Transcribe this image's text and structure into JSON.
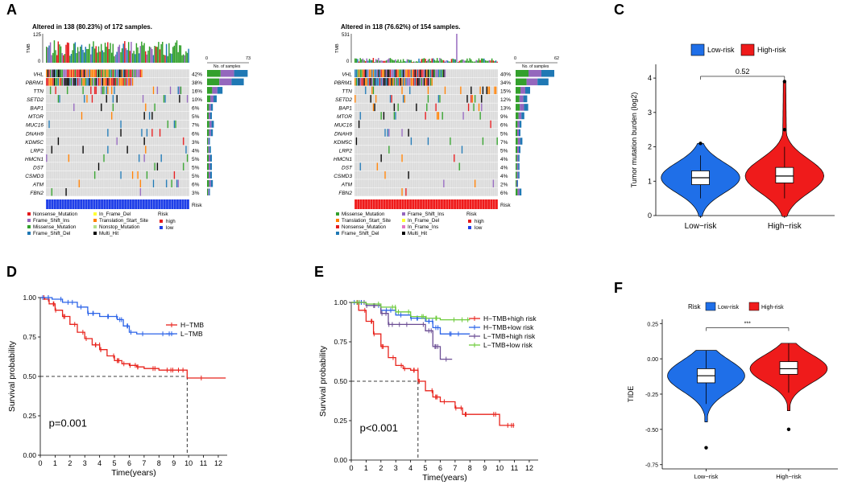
{
  "figure": {
    "panel_letters": [
      "A",
      "B",
      "C",
      "D",
      "E",
      "F"
    ]
  },
  "chart_data": [
    {
      "type": "oncoplot",
      "id": "A",
      "title": "Altered in 138 (80.23%) of 172 samples.",
      "tmb_axis": {
        "label": "TMB",
        "max": 125,
        "ticks": [
          0,
          125
        ]
      },
      "samples_axis": {
        "label": "No. of samples",
        "ticks": [
          0,
          73
        ]
      },
      "genes": [
        "VHL",
        "PBRM1",
        "TTN",
        "SETD2",
        "BAP1",
        "MTOR",
        "MUC16",
        "DNAH9",
        "KDM5C",
        "LRP2",
        "HMCN1",
        "DST",
        "CSMD3",
        "ATM",
        "FBN2"
      ],
      "percentages": [
        "42%",
        "38%",
        "16%",
        "10%",
        "6%",
        "5%",
        "7%",
        "6%",
        "3%",
        "4%",
        "5%",
        "5%",
        "5%",
        "6%",
        "3%"
      ],
      "risk_label": "Risk",
      "risk_group": "low",
      "legend": {
        "mutation_types": [
          "Nonsense_Mutation",
          "Frame_Shift_Ins",
          "Missense_Mutation",
          "Frame_Shift_Del",
          "In_Frame_Del",
          "Translation_Start_Site",
          "Nonstop_Mutation",
          "Multi_Hit"
        ],
        "risk_title": "Risk",
        "risk_levels": [
          "high",
          "low"
        ]
      }
    },
    {
      "type": "oncoplot",
      "id": "B",
      "title": "Altered in 118 (76.62%) of 154 samples.",
      "tmb_axis": {
        "label": "TMB",
        "max": 531,
        "ticks": [
          0,
          531
        ]
      },
      "samples_axis": {
        "label": "No. of samples",
        "ticks": [
          0,
          62
        ]
      },
      "genes": [
        "VHL",
        "PBRM1",
        "TTN",
        "SETD2",
        "BAP1",
        "MTOR",
        "MUC16",
        "DNAH9",
        "KDM5C",
        "LRP2",
        "HMCN1",
        "DST",
        "CSMD3",
        "ATM",
        "FBN2"
      ],
      "percentages": [
        "40%",
        "34%",
        "15%",
        "12%",
        "13%",
        "9%",
        "6%",
        "5%",
        "7%",
        "5%",
        "4%",
        "4%",
        "4%",
        "2%",
        "6%"
      ],
      "risk_label": "Risk",
      "risk_group": "high",
      "legend": {
        "mutation_types": [
          "Missense_Mutation",
          "Translation_Start_Site",
          "Nonsense_Mutation",
          "Frame_Shift_Del",
          "Frame_Shift_Ins",
          "In_Frame_Del",
          "In_Frame_Ins",
          "Multi_Hit"
        ],
        "risk_title": "Risk",
        "risk_levels": [
          "high",
          "low"
        ]
      }
    },
    {
      "type": "violin",
      "id": "C",
      "legend": [
        "Low-risk",
        "High-risk"
      ],
      "ylabel": "Tumor mutation burden (log2)",
      "ylim": [
        0,
        4.4
      ],
      "yticks": [
        0,
        1,
        2,
        3,
        4
      ],
      "categories": [
        "Low−risk",
        "High−risk"
      ],
      "medians": [
        1.1,
        1.15
      ],
      "q1": [
        0.9,
        0.95
      ],
      "q3": [
        1.3,
        1.4
      ],
      "whisker_low": [
        0.5,
        0.5
      ],
      "whisker_high": [
        1.75,
        2.0
      ],
      "outliers": [
        [
          2.1
        ],
        [
          2.5,
          3.9
        ]
      ],
      "pvalue": "0.52",
      "colors": [
        "#1f6fe8",
        "#ef1b1b"
      ]
    },
    {
      "type": "kaplan_meier",
      "id": "D",
      "xlabel": "Time(years)",
      "ylabel": "Survival probability",
      "xticks": [
        0,
        1,
        2,
        3,
        4,
        5,
        6,
        7,
        8,
        9,
        10,
        11,
        12
      ],
      "yticks": [
        "0.00",
        "0.25",
        "0.50",
        "0.75",
        "1.00"
      ],
      "xlim": [
        0,
        12.6
      ],
      "ylim": [
        0,
        1.0
      ],
      "pvalue": "p=0.001",
      "median_time": 9.9,
      "series": [
        {
          "name": "H−TMB",
          "color": "#e8231c",
          "points": [
            [
              0,
              1.0
            ],
            [
              0.3,
              0.99
            ],
            [
              0.6,
              0.96
            ],
            [
              1.0,
              0.92
            ],
            [
              1.5,
              0.88
            ],
            [
              2.0,
              0.83
            ],
            [
              2.5,
              0.78
            ],
            [
              3.0,
              0.74
            ],
            [
              3.5,
              0.7
            ],
            [
              4.0,
              0.67
            ],
            [
              4.5,
              0.63
            ],
            [
              5.0,
              0.6
            ],
            [
              5.5,
              0.58
            ],
            [
              6.0,
              0.57
            ],
            [
              6.5,
              0.56
            ],
            [
              7.0,
              0.55
            ],
            [
              8.0,
              0.54
            ],
            [
              9.0,
              0.54
            ],
            [
              9.9,
              0.49
            ],
            [
              12.5,
              0.49
            ]
          ]
        },
        {
          "name": "L−TMB",
          "color": "#2b63e8",
          "points": [
            [
              0,
              1.0
            ],
            [
              0.8,
              0.99
            ],
            [
              1.5,
              0.97
            ],
            [
              2.5,
              0.94
            ],
            [
              3.2,
              0.9
            ],
            [
              4.0,
              0.88
            ],
            [
              5.2,
              0.86
            ],
            [
              5.6,
              0.82
            ],
            [
              6.0,
              0.78
            ],
            [
              6.5,
              0.77
            ],
            [
              9.0,
              0.77
            ]
          ]
        }
      ]
    },
    {
      "type": "kaplan_meier",
      "id": "E",
      "xlabel": "Time(years)",
      "ylabel": "Survival probability",
      "xticks": [
        0,
        1,
        2,
        3,
        4,
        5,
        6,
        7,
        8,
        9,
        10,
        11,
        12
      ],
      "yticks": [
        "0.00",
        "0.25",
        "0.50",
        "0.75",
        "1.00"
      ],
      "xlim": [
        0,
        12.6
      ],
      "ylim": [
        0,
        1.0
      ],
      "pvalue": "p<0.001",
      "median_time": 4.5,
      "series": [
        {
          "name": "H−TMB+high risk",
          "color": "#e8231c",
          "points": [
            [
              0,
              1.0
            ],
            [
              0.5,
              0.95
            ],
            [
              1.0,
              0.88
            ],
            [
              1.5,
              0.8
            ],
            [
              2.0,
              0.72
            ],
            [
              2.5,
              0.65
            ],
            [
              3.0,
              0.6
            ],
            [
              3.5,
              0.58
            ],
            [
              4.0,
              0.57
            ],
            [
              4.5,
              0.5
            ],
            [
              5.0,
              0.44
            ],
            [
              5.5,
              0.4
            ],
            [
              6.0,
              0.37
            ],
            [
              7.0,
              0.33
            ],
            [
              7.5,
              0.29
            ],
            [
              9.0,
              0.29
            ],
            [
              10.0,
              0.22
            ],
            [
              11.0,
              0.22
            ]
          ]
        },
        {
          "name": "H−TMB+low risk",
          "color": "#2b63e8",
          "points": [
            [
              0,
              1.0
            ],
            [
              1.0,
              0.98
            ],
            [
              2.0,
              0.95
            ],
            [
              3.0,
              0.92
            ],
            [
              4.0,
              0.9
            ],
            [
              5.0,
              0.88
            ],
            [
              5.5,
              0.84
            ],
            [
              6.0,
              0.8
            ],
            [
              7.0,
              0.8
            ],
            [
              8.0,
              0.8
            ]
          ]
        },
        {
          "name": "L−TMB+high risk",
          "color": "#6a4c93",
          "points": [
            [
              0,
              1.0
            ],
            [
              1.0,
              0.98
            ],
            [
              2.0,
              0.93
            ],
            [
              2.5,
              0.86
            ],
            [
              3.0,
              0.86
            ],
            [
              4.0,
              0.86
            ],
            [
              5.0,
              0.82
            ],
            [
              5.5,
              0.72
            ],
            [
              6.0,
              0.64
            ],
            [
              6.8,
              0.64
            ]
          ]
        },
        {
          "name": "L−TMB+low risk",
          "color": "#6ecb3c",
          "points": [
            [
              0,
              1.0
            ],
            [
              1.0,
              0.99
            ],
            [
              2.0,
              0.97
            ],
            [
              3.0,
              0.94
            ],
            [
              4.0,
              0.91
            ],
            [
              5.0,
              0.9
            ],
            [
              6.0,
              0.89
            ],
            [
              8.0,
              0.89
            ]
          ]
        }
      ]
    },
    {
      "type": "violin",
      "id": "F",
      "legend_title": "Risk",
      "legend": [
        "Low-risk",
        "High-risk"
      ],
      "ylabel": "TIDE",
      "ylim": [
        -0.78,
        0.28
      ],
      "yticks": [
        "0.25",
        "0.00",
        "-0.25",
        "-0.50",
        "-0.75"
      ],
      "ytick_values": [
        0.25,
        0.0,
        -0.25,
        -0.5,
        -0.75
      ],
      "categories": [
        "Low−risk",
        "High−risk"
      ],
      "medians": [
        -0.12,
        -0.07
      ],
      "q1": [
        -0.17,
        -0.11
      ],
      "q3": [
        -0.07,
        -0.02
      ],
      "whisker_low": [
        -0.32,
        -0.24
      ],
      "whisker_high": [
        0.06,
        0.11
      ],
      "outliers": [
        [
          -0.63
        ],
        [
          -0.5
        ]
      ],
      "pvalue": "***",
      "colors": [
        "#1f6fe8",
        "#ef1b1b"
      ]
    }
  ]
}
